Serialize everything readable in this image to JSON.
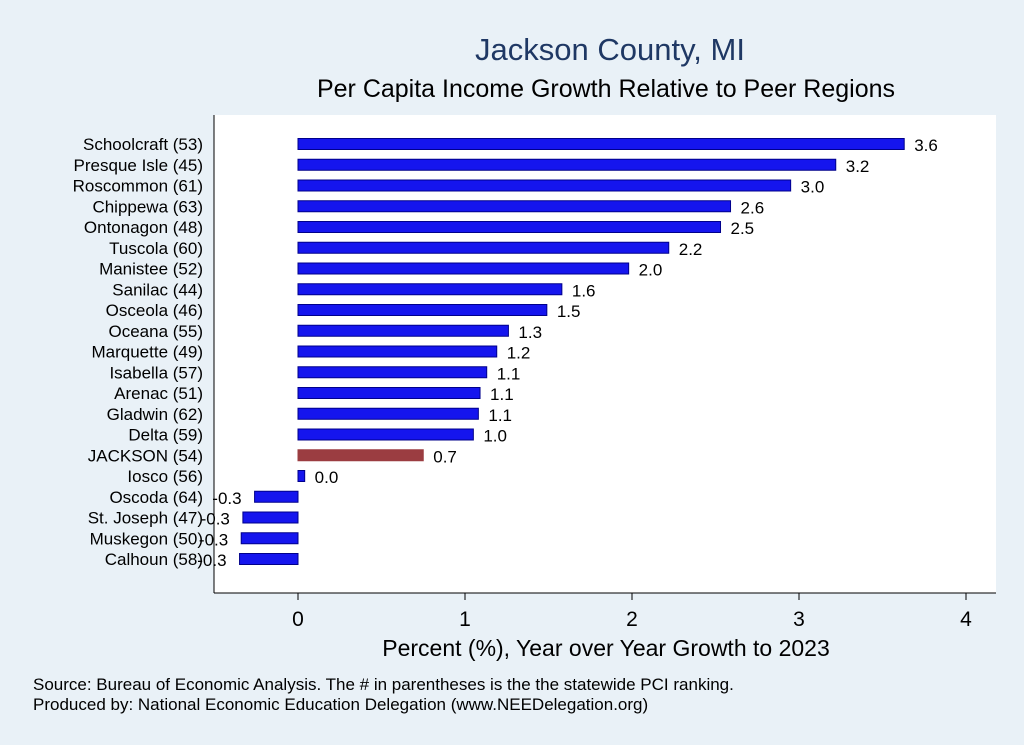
{
  "chart_data": {
    "type": "bar",
    "orientation": "horizontal",
    "title": "Jackson County, MI",
    "subtitle": "Per Capita Income Growth Relative to Peer Regions",
    "xlabel": "Percent (%), Year over Year Growth to 2023",
    "xlim": [
      -0.5,
      4.15
    ],
    "xticks": [
      0,
      1,
      2,
      3,
      4
    ],
    "grid": false,
    "categories": [
      "Schoolcraft (53)",
      "Presque Isle (45)",
      "Roscommon (61)",
      "Chippewa (63)",
      "Ontonagon (48)",
      "Tuscola (60)",
      "Manistee (52)",
      "Sanilac (44)",
      "Osceola (46)",
      "Oceana (55)",
      "Marquette (49)",
      "Isabella (57)",
      "Arenac (51)",
      "Gladwin (62)",
      "Delta (59)",
      "JACKSON (54)",
      "Iosco (56)",
      "Oscoda (64)",
      "St. Joseph (47)",
      "Muskegon (50)",
      "Calhoun (58)"
    ],
    "values": [
      3.63,
      3.22,
      2.95,
      2.59,
      2.53,
      2.22,
      1.98,
      1.58,
      1.49,
      1.26,
      1.19,
      1.13,
      1.09,
      1.08,
      1.05,
      0.75,
      0.04,
      -0.26,
      -0.33,
      -0.34,
      -0.35
    ],
    "value_labels": [
      "3.6",
      "3.2",
      "3.0",
      "2.6",
      "2.5",
      "2.2",
      "2.0",
      "1.6",
      "1.5",
      "1.3",
      "1.2",
      "1.1",
      "1.1",
      "1.1",
      "1.0",
      "0.7",
      "0.0",
      "-0.3",
      "-0.3",
      "-0.3",
      "-0.3"
    ],
    "highlight": "JACKSON (54)",
    "colors": {
      "bar": "#1515ee",
      "highlight_bar": "#9b3d41",
      "bar_edge": "#00008b",
      "plot_background": "#ffffff",
      "page_background": "#e9f1f7",
      "title": "#1f3864"
    }
  },
  "footer": {
    "source": "Source: Bureau of Economic Analysis. The # in parentheses is the the statewide PCI ranking.",
    "producer": "Produced by: National Economic Education Delegation (www.NEEDelegation.org)"
  }
}
